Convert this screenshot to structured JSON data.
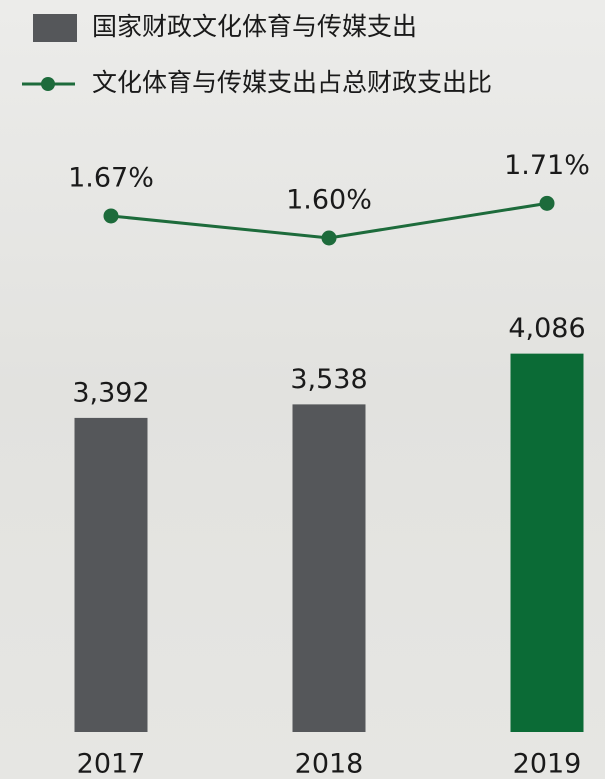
{
  "chart_data": {
    "type": "bar",
    "categories": [
      "2017",
      "2018",
      "2019"
    ],
    "series": [
      {
        "name": "国家财政文化体育与传媒支出",
        "color": "#55575a",
        "colors": [
          "#55575a",
          "#55575a",
          "#0b6b36"
        ],
        "values": [
          3392,
          3538,
          4086
        ],
        "value_labels": [
          "3,392",
          "3,538",
          "4,086"
        ]
      },
      {
        "name": "文化体育与传媒支出占总财政支出比",
        "type": "line",
        "axis": "y2",
        "color": "#1d6b3b",
        "values": [
          1.67,
          1.6,
          1.71
        ],
        "value_labels": [
          "1.67%",
          "1.60%",
          "1.71%"
        ]
      }
    ],
    "ylim": [
      0,
      5000
    ],
    "y2lim": [
      1.4,
      1.8
    ],
    "legend": "top-left"
  }
}
